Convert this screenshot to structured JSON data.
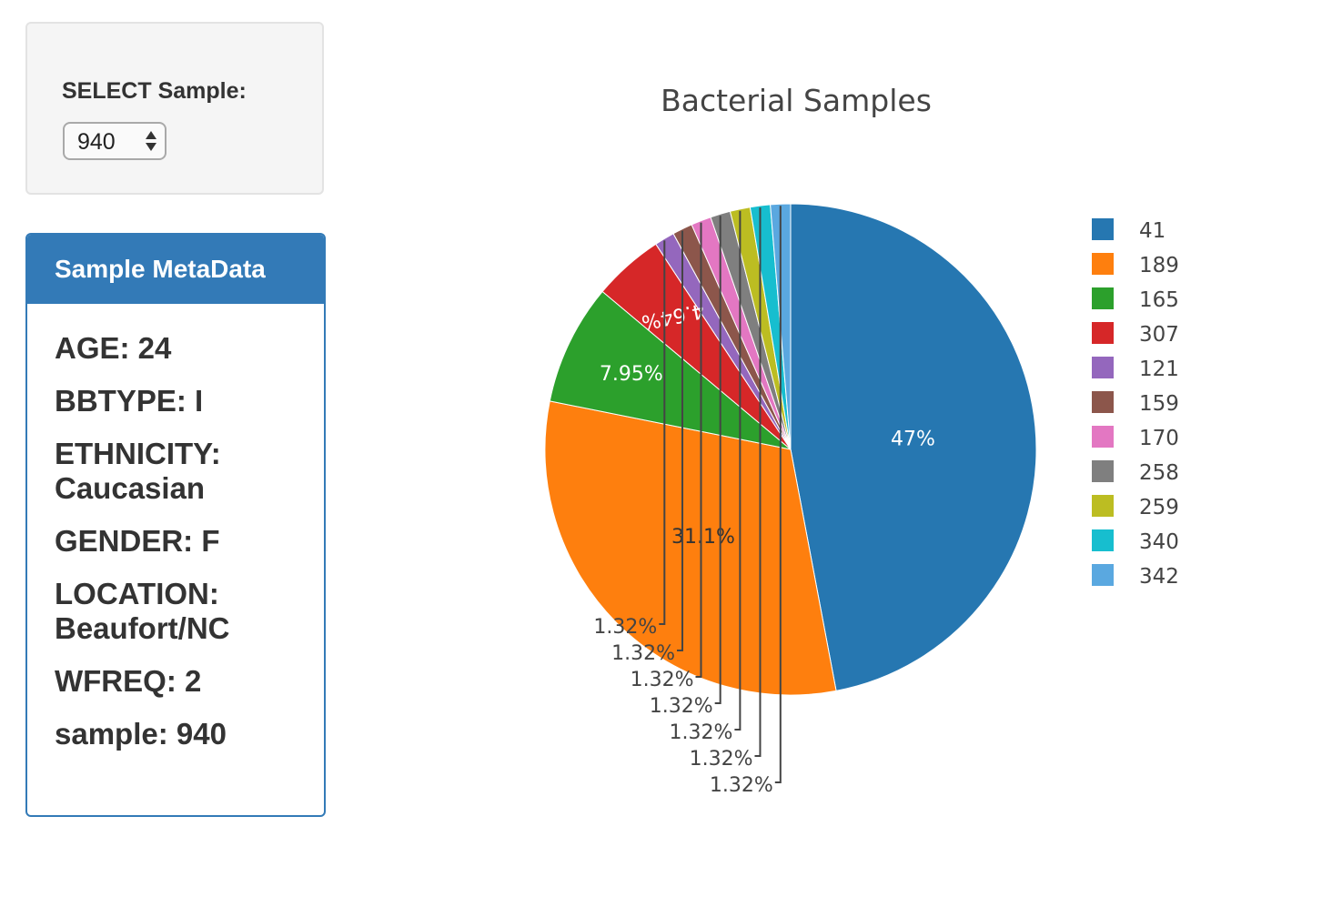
{
  "selector": {
    "label": "SELECT Sample:",
    "selected": "940"
  },
  "metadata": {
    "heading": "Sample MetaData",
    "rows": [
      "AGE: 24",
      "BBTYPE: I",
      "ETHNICITY: Caucasian",
      "GENDER: F",
      "LOCATION: Beaufort/NC",
      "WFREQ: 2",
      "sample: 940"
    ]
  },
  "chart_data": {
    "type": "pie",
    "title": "Bacterial Samples",
    "labels": [
      "41",
      "189",
      "165",
      "307",
      "121",
      "159",
      "170",
      "258",
      "259",
      "340",
      "342"
    ],
    "values": [
      47,
      31.1,
      7.95,
      4.64,
      1.32,
      1.32,
      1.32,
      1.32,
      1.32,
      1.32,
      1.32
    ],
    "text_labels": [
      "47%",
      "31.1%",
      "7.95%",
      "4.64%",
      "1.32%",
      "1.32%",
      "1.32%",
      "1.32%",
      "1.32%",
      "1.32%",
      "1.32%"
    ],
    "colors": [
      "#2677b1",
      "#fe7f0e",
      "#2ca02c",
      "#d62728",
      "#9467bd",
      "#8c564b",
      "#e377c2",
      "#7f7f7f",
      "#bcbd22",
      "#17becf",
      "#5aa8e0"
    ],
    "legend_position": "right",
    "sort": "descending"
  }
}
